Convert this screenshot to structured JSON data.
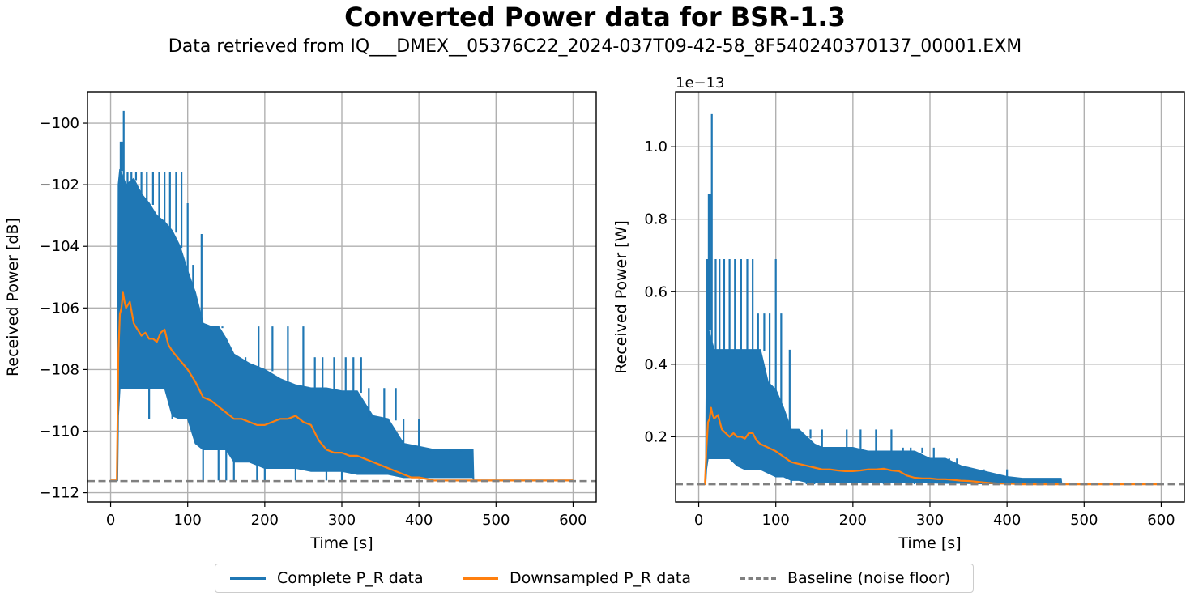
{
  "title": "Converted Power data for BSR-1.3",
  "subtitle": "Data retrieved from IQ___DMEX__05376C22_2024-037T09-42-58_8F540240370137_00001.EXM",
  "colors": {
    "complete": "#1f77b4",
    "downsampled": "#ff7f0e",
    "baseline": "#808080"
  },
  "legend": [
    {
      "key": "complete",
      "label": "Complete P_R data",
      "style": "solid"
    },
    {
      "key": "downsampled",
      "label": "Downsampled P_R data",
      "style": "solid"
    },
    {
      "key": "baseline",
      "label": "Baseline (noise floor)",
      "style": "dashed"
    }
  ],
  "chart_data": [
    {
      "type": "line",
      "xlabel": "Time [s]",
      "ylabel": "Received Power [dB]",
      "xlim": [
        -30,
        630
      ],
      "ylim": [
        -112.3,
        -99.0
      ],
      "xticks": [
        0,
        100,
        200,
        300,
        400,
        500,
        600
      ],
      "yticks": [
        -112,
        -110,
        -108,
        -106,
        -104,
        -102,
        -100
      ],
      "ytick_labels": [
        "−112",
        "−110",
        "−108",
        "−106",
        "−104",
        "−102",
        "−100"
      ],
      "grid": true,
      "series": [
        {
          "name": "Complete P_R data",
          "style": "envelope",
          "x": [
            0,
            9,
            10,
            12,
            20,
            30,
            40,
            50,
            60,
            70,
            80,
            90,
            100,
            110,
            120,
            130,
            140,
            150,
            160,
            180,
            200,
            220,
            240,
            260,
            280,
            300,
            320,
            340,
            360,
            380,
            400,
            420,
            440,
            460,
            470,
            471,
            600
          ],
          "upper": [
            -111.6,
            -111.6,
            -102,
            -101.5,
            -102,
            -101.8,
            -102.3,
            -102.6,
            -103,
            -103.2,
            -103.5,
            -104,
            -104.8,
            -105.5,
            -106.5,
            -106.6,
            -106.6,
            -107,
            -107.5,
            -107.8,
            -108,
            -108.3,
            -108.5,
            -108.6,
            -108.6,
            -108.7,
            -108.7,
            -109.5,
            -109.6,
            -110.4,
            -110.5,
            -110.6,
            -110.6,
            -110.6,
            -110.6,
            -111.6,
            -111.6
          ],
          "lower": [
            -111.6,
            -111.6,
            -109.5,
            -108.6,
            -108.6,
            -108.6,
            -108.6,
            -108.6,
            -108.6,
            -108.6,
            -109.5,
            -109.6,
            -109.6,
            -110.4,
            -110.6,
            -110.6,
            -110.6,
            -110.6,
            -111.0,
            -111.0,
            -111.2,
            -111.2,
            -111.2,
            -111.3,
            -111.3,
            -111.3,
            -111.4,
            -111.4,
            -111.4,
            -111.5,
            -111.5,
            -111.5,
            -111.5,
            -111.5,
            -111.5,
            -111.6,
            -111.6
          ],
          "spikes": [
            [
              17,
              -99.6
            ],
            [
              13,
              -100.6
            ],
            [
              15,
              -100.6
            ],
            [
              22,
              -101.6
            ],
            [
              27,
              -101.6
            ],
            [
              33,
              -101.6
            ],
            [
              40,
              -101.6
            ],
            [
              47,
              -101.6
            ],
            [
              55,
              -101.6
            ],
            [
              63,
              -101.6
            ],
            [
              70,
              -101.6
            ],
            [
              77,
              -101.6
            ],
            [
              85,
              -101.6
            ],
            [
              92,
              -101.6
            ],
            [
              100,
              -102.6
            ],
            [
              107,
              -104.6
            ],
            [
              118,
              -103.6
            ],
            [
              125,
              -106.6
            ],
            [
              145,
              -106.6
            ],
            [
              160,
              -107.6
            ],
            [
              175,
              -107.6
            ],
            [
              192,
              -106.6
            ],
            [
              210,
              -106.6
            ],
            [
              230,
              -106.6
            ],
            [
              250,
              -106.6
            ],
            [
              265,
              -107.6
            ],
            [
              275,
              -107.6
            ],
            [
              290,
              -107.6
            ],
            [
              305,
              -107.6
            ],
            [
              315,
              -107.6
            ],
            [
              325,
              -107.6
            ],
            [
              335,
              -108.6
            ],
            [
              355,
              -108.6
            ],
            [
              370,
              -108.6
            ],
            [
              380,
              -109.6
            ],
            [
              400,
              -109.6
            ],
            [
              415,
              -110.6
            ],
            [
              440,
              -110.6
            ],
            [
              455,
              -110.6
            ]
          ],
          "dips": [
            [
              20,
              -108.6
            ],
            [
              50,
              -109.6
            ],
            [
              80,
              -109.6
            ],
            [
              120,
              -111.6
            ],
            [
              140,
              -111.6
            ],
            [
              150,
              -111.6
            ],
            [
              160,
              -111.6
            ],
            [
              190,
              -111.6
            ],
            [
              200,
              -111.6
            ],
            [
              240,
              -111.6
            ],
            [
              280,
              -111.6
            ],
            [
              300,
              -111.6
            ]
          ]
        },
        {
          "name": "Downsampled P_R data",
          "style": "line",
          "x": [
            0,
            8,
            10,
            12,
            14,
            16,
            18,
            20,
            25,
            30,
            35,
            40,
            45,
            50,
            55,
            60,
            65,
            70,
            75,
            80,
            90,
            100,
            110,
            120,
            130,
            140,
            150,
            160,
            170,
            180,
            190,
            200,
            210,
            220,
            230,
            240,
            250,
            260,
            270,
            280,
            290,
            300,
            310,
            320,
            330,
            340,
            350,
            360,
            370,
            380,
            390,
            400,
            410,
            420,
            440,
            460,
            480,
            500,
            550,
            600
          ],
          "y": [
            -111.6,
            -111.6,
            -107.5,
            -106.2,
            -106.0,
            -105.5,
            -105.8,
            -106.0,
            -105.8,
            -106.5,
            -106.7,
            -106.9,
            -106.8,
            -107.0,
            -107.0,
            -107.1,
            -106.8,
            -106.7,
            -107.2,
            -107.4,
            -107.7,
            -108.0,
            -108.4,
            -108.9,
            -109.0,
            -109.2,
            -109.4,
            -109.6,
            -109.6,
            -109.7,
            -109.8,
            -109.8,
            -109.7,
            -109.6,
            -109.6,
            -109.5,
            -109.7,
            -109.8,
            -110.3,
            -110.6,
            -110.7,
            -110.7,
            -110.8,
            -110.8,
            -110.9,
            -111.0,
            -111.1,
            -111.2,
            -111.3,
            -111.4,
            -111.5,
            -111.5,
            -111.55,
            -111.6,
            -111.6,
            -111.6,
            -111.6,
            -111.6,
            -111.6,
            -111.6
          ]
        },
        {
          "name": "Baseline (noise floor)",
          "style": "dashed",
          "y_const": -111.62
        }
      ]
    },
    {
      "type": "line",
      "xlabel": "Time [s]",
      "ylabel": "Received Power [W]",
      "offset_label": "1e−13",
      "xlim": [
        -30,
        630
      ],
      "ylim": [
        0.02,
        1.15
      ],
      "xticks": [
        0,
        100,
        200,
        300,
        400,
        500,
        600
      ],
      "yticks": [
        0.2,
        0.4,
        0.6,
        0.8,
        1.0
      ],
      "ytick_labels": [
        "0.2",
        "0.4",
        "0.6",
        "0.8",
        "1.0"
      ],
      "grid": true,
      "series": [
        {
          "name": "Complete P_R data",
          "style": "envelope",
          "x": [
            0,
            9,
            10,
            12,
            20,
            30,
            40,
            50,
            60,
            70,
            80,
            90,
            100,
            110,
            120,
            130,
            140,
            150,
            160,
            180,
            200,
            220,
            240,
            260,
            280,
            300,
            320,
            340,
            360,
            380,
            400,
            420,
            440,
            460,
            470,
            471,
            600
          ],
          "upper": [
            0.069,
            0.069,
            0.44,
            0.5,
            0.44,
            0.44,
            0.44,
            0.44,
            0.44,
            0.44,
            0.44,
            0.35,
            0.33,
            0.28,
            0.22,
            0.22,
            0.2,
            0.18,
            0.17,
            0.17,
            0.17,
            0.16,
            0.16,
            0.16,
            0.16,
            0.14,
            0.14,
            0.12,
            0.11,
            0.1,
            0.09,
            0.085,
            0.085,
            0.085,
            0.085,
            0.069,
            0.069
          ],
          "lower": [
            0.069,
            0.069,
            0.11,
            0.14,
            0.14,
            0.14,
            0.14,
            0.12,
            0.11,
            0.11,
            0.11,
            0.1,
            0.09,
            0.09,
            0.08,
            0.08,
            0.075,
            0.075,
            0.075,
            0.075,
            0.075,
            0.075,
            0.075,
            0.075,
            0.073,
            0.073,
            0.072,
            0.072,
            0.071,
            0.071,
            0.07,
            0.07,
            0.07,
            0.07,
            0.07,
            0.069,
            0.069
          ],
          "spikes": [
            [
              17,
              1.09
            ],
            [
              13,
              0.87
            ],
            [
              15,
              0.87
            ],
            [
              11,
              0.69
            ],
            [
              22,
              0.69
            ],
            [
              27,
              0.69
            ],
            [
              33,
              0.69
            ],
            [
              40,
              0.69
            ],
            [
              47,
              0.69
            ],
            [
              55,
              0.69
            ],
            [
              63,
              0.69
            ],
            [
              70,
              0.69
            ],
            [
              77,
              0.54
            ],
            [
              85,
              0.54
            ],
            [
              92,
              0.54
            ],
            [
              100,
              0.69
            ],
            [
              107,
              0.54
            ],
            [
              118,
              0.44
            ],
            [
              125,
              0.22
            ],
            [
              145,
              0.22
            ],
            [
              160,
              0.22
            ],
            [
              192,
              0.22
            ],
            [
              210,
              0.22
            ],
            [
              230,
              0.22
            ],
            [
              250,
              0.22
            ],
            [
              265,
              0.17
            ],
            [
              275,
              0.17
            ],
            [
              290,
              0.17
            ],
            [
              305,
              0.17
            ],
            [
              315,
              0.14
            ],
            [
              325,
              0.14
            ],
            [
              335,
              0.14
            ],
            [
              370,
              0.11
            ],
            [
              400,
              0.11
            ]
          ],
          "dips": [
            [
              120,
              0.069
            ],
            [
              140,
              0.069
            ],
            [
              150,
              0.069
            ],
            [
              160,
              0.069
            ],
            [
              190,
              0.069
            ],
            [
              200,
              0.069
            ],
            [
              240,
              0.069
            ],
            [
              280,
              0.069
            ],
            [
              300,
              0.069
            ]
          ]
        },
        {
          "name": "Downsampled P_R data",
          "style": "line",
          "x": [
            0,
            8,
            10,
            12,
            14,
            16,
            18,
            20,
            25,
            30,
            35,
            40,
            45,
            50,
            55,
            60,
            65,
            70,
            75,
            80,
            90,
            100,
            110,
            120,
            130,
            140,
            150,
            160,
            170,
            180,
            190,
            200,
            210,
            220,
            230,
            240,
            250,
            260,
            270,
            280,
            290,
            300,
            310,
            320,
            330,
            340,
            350,
            360,
            370,
            380,
            390,
            400,
            410,
            420,
            440,
            460,
            480,
            500,
            550,
            600
          ],
          "y": [
            0.069,
            0.069,
            0.17,
            0.24,
            0.25,
            0.28,
            0.26,
            0.25,
            0.26,
            0.22,
            0.21,
            0.2,
            0.21,
            0.2,
            0.2,
            0.195,
            0.21,
            0.21,
            0.19,
            0.18,
            0.17,
            0.16,
            0.145,
            0.13,
            0.125,
            0.12,
            0.115,
            0.11,
            0.11,
            0.107,
            0.105,
            0.105,
            0.107,
            0.11,
            0.11,
            0.112,
            0.107,
            0.105,
            0.093,
            0.087,
            0.085,
            0.085,
            0.083,
            0.083,
            0.081,
            0.079,
            0.078,
            0.076,
            0.074,
            0.072,
            0.071,
            0.071,
            0.07,
            0.069,
            0.069,
            0.069,
            0.069,
            0.069,
            0.069,
            0.069
          ]
        },
        {
          "name": "Baseline (noise floor)",
          "style": "dashed",
          "y_const": 0.069
        }
      ]
    }
  ]
}
